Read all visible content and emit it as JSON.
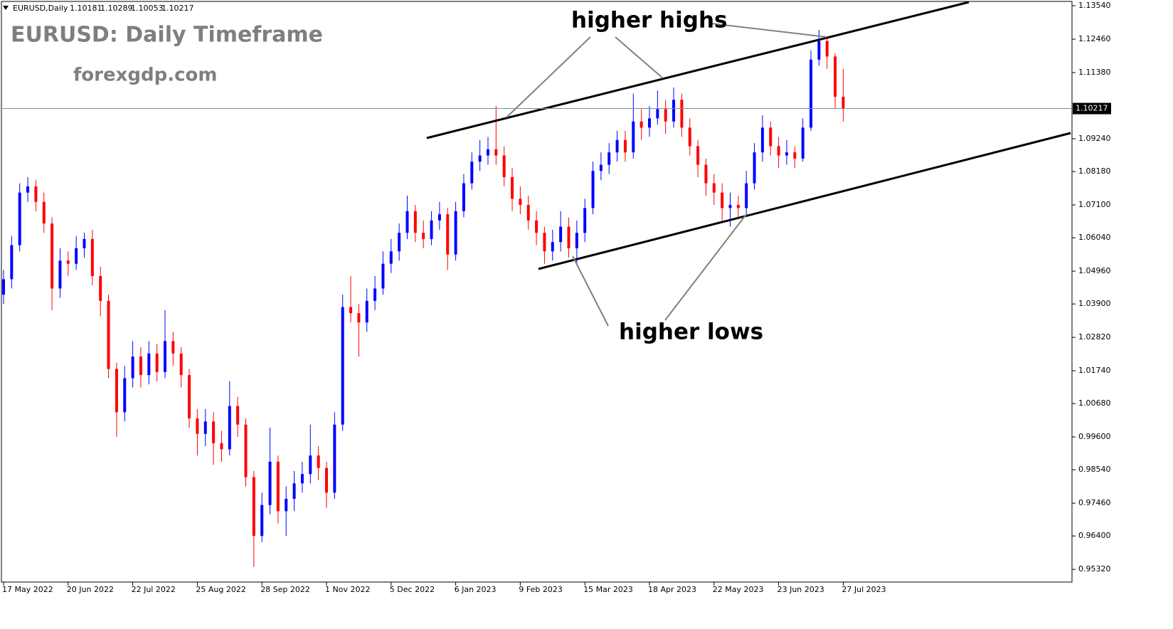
{
  "header": {
    "symbol": "EURUSD,Daily",
    "ohlc": [
      1.10181,
      1.10289,
      1.10053,
      1.10217
    ]
  },
  "chart_data": {
    "type": "candlestick",
    "title": "EURUSD: Daily Timeframe",
    "subtitle": "forexgdp.com",
    "annotations": [
      "higher highs",
      "higher lows"
    ],
    "up_color": "#0000ff",
    "down_color": "#ff0000",
    "last_price": 1.10217,
    "ylim": [
      0.9491,
      1.1368
    ],
    "yticks": [
      {
        "value": 1.1354,
        "label": "1.13540"
      },
      {
        "value": 1.1246,
        "label": "1.12460"
      },
      {
        "value": 1.1138,
        "label": "1.11380"
      },
      {
        "value": 1.0924,
        "label": "1.09240"
      },
      {
        "value": 1.0818,
        "label": "1.08180"
      },
      {
        "value": 1.071,
        "label": "1.07100"
      },
      {
        "value": 1.0604,
        "label": "1.06040"
      },
      {
        "value": 1.0496,
        "label": "1.04960"
      },
      {
        "value": 1.039,
        "label": "1.03900"
      },
      {
        "value": 1.0282,
        "label": "1.02820"
      },
      {
        "value": 1.0174,
        "label": "1.01740"
      },
      {
        "value": 1.0068,
        "label": "1.00680"
      },
      {
        "value": 0.996,
        "label": "0.99600"
      },
      {
        "value": 0.9854,
        "label": "0.98540"
      },
      {
        "value": 0.9746,
        "label": "0.97460"
      },
      {
        "value": 0.964,
        "label": "0.96400"
      },
      {
        "value": 0.9532,
        "label": "0.95320"
      }
    ],
    "categories": [
      "17 May 2022",
      null,
      null,
      null,
      null,
      null,
      null,
      null,
      "20 Jun 2022",
      null,
      null,
      null,
      null,
      null,
      null,
      null,
      "22 Jul 2022",
      null,
      null,
      null,
      null,
      null,
      null,
      null,
      "25 Aug 2022",
      null,
      null,
      null,
      null,
      null,
      null,
      null,
      "28 Sep 2022",
      null,
      null,
      null,
      null,
      null,
      null,
      null,
      "1 Nov 2022",
      null,
      null,
      null,
      null,
      null,
      null,
      null,
      "5 Dec 2022",
      null,
      null,
      null,
      null,
      null,
      null,
      null,
      "6 Jan 2023",
      null,
      null,
      null,
      null,
      null,
      null,
      null,
      "9 Feb 2023",
      null,
      null,
      null,
      null,
      null,
      null,
      null,
      "15 Mar 2023",
      null,
      null,
      null,
      null,
      null,
      null,
      null,
      "18 Apr 2023",
      null,
      null,
      null,
      null,
      null,
      null,
      null,
      "22 May 2023",
      null,
      null,
      null,
      null,
      null,
      null,
      null,
      "23 Jun 2023",
      null,
      null,
      null,
      null,
      null,
      null,
      null,
      "27 Jul 2023"
    ],
    "open": [
      1.042,
      1.047,
      1.058,
      1.075,
      1.077,
      1.072,
      1.065,
      1.044,
      1.053,
      1.052,
      1.057,
      1.06,
      1.048,
      1.04,
      1.018,
      1.004,
      1.015,
      1.022,
      1.016,
      1.023,
      1.017,
      1.027,
      1.023,
      1.016,
      1.002,
      0.997,
      1.001,
      0.994,
      0.992,
      1.006,
      1.0,
      0.983,
      0.964,
      0.974,
      0.988,
      0.972,
      0.976,
      0.981,
      0.984,
      0.99,
      0.986,
      0.978,
      1.0,
      1.038,
      1.036,
      1.033,
      1.04,
      1.044,
      1.052,
      1.056,
      1.062,
      1.069,
      1.062,
      1.06,
      1.066,
      1.068,
      1.055,
      1.069,
      1.078,
      1.085,
      1.087,
      1.089,
      1.087,
      1.08,
      1.073,
      1.071,
      1.066,
      1.062,
      1.056,
      1.059,
      1.064,
      1.057,
      1.062,
      1.07,
      1.082,
      1.084,
      1.088,
      1.092,
      1.088,
      1.098,
      1.096,
      1.099,
      1.102,
      1.098,
      1.105,
      1.096,
      1.09,
      1.084,
      1.078,
      1.075,
      1.07,
      1.071,
      1.07,
      1.078,
      1.088,
      1.096,
      1.09,
      1.087,
      1.088,
      1.086,
      1.096,
      1.118,
      1.124,
      1.119,
      1.106
    ],
    "high": [
      1.05,
      1.061,
      1.078,
      1.08,
      1.079,
      1.075,
      1.067,
      1.057,
      1.056,
      1.061,
      1.062,
      1.063,
      1.051,
      1.042,
      1.02,
      1.019,
      1.027,
      1.025,
      1.027,
      1.026,
      1.037,
      1.03,
      1.025,
      1.018,
      1.005,
      1.005,
      1.004,
      0.998,
      1.014,
      1.009,
      1.002,
      0.985,
      0.978,
      0.999,
      0.99,
      0.98,
      0.985,
      0.988,
      1.0,
      0.993,
      0.988,
      1.004,
      1.042,
      1.048,
      1.039,
      1.044,
      1.048,
      1.056,
      1.06,
      1.065,
      1.074,
      1.071,
      1.066,
      1.069,
      1.072,
      1.07,
      1.072,
      1.081,
      1.088,
      1.092,
      1.093,
      1.103,
      1.09,
      1.083,
      1.077,
      1.074,
      1.069,
      1.064,
      1.063,
      1.069,
      1.067,
      1.066,
      1.073,
      1.085,
      1.088,
      1.091,
      1.095,
      1.095,
      1.107,
      1.102,
      1.103,
      1.108,
      1.105,
      1.109,
      1.107,
      1.099,
      1.092,
      1.086,
      1.081,
      1.078,
      1.075,
      1.074,
      1.082,
      1.091,
      1.1,
      1.098,
      1.093,
      1.092,
      1.09,
      1.099,
      1.121,
      1.1276,
      1.125,
      1.12,
      1.115
    ],
    "low": [
      1.039,
      1.044,
      1.056,
      1.072,
      1.069,
      1.062,
      1.037,
      1.041,
      1.048,
      1.05,
      1.054,
      1.045,
      1.035,
      1.015,
      0.996,
      1.001,
      1.012,
      1.012,
      1.013,
      1.014,
      1.015,
      1.019,
      1.012,
      0.999,
      0.99,
      0.993,
      0.987,
      0.988,
      0.99,
      0.996,
      0.98,
      0.954,
      0.962,
      0.971,
      0.968,
      0.964,
      0.972,
      0.978,
      0.981,
      0.982,
      0.973,
      0.976,
      0.998,
      1.033,
      1.022,
      1.03,
      1.037,
      1.042,
      1.049,
      1.053,
      1.06,
      1.059,
      1.057,
      1.058,
      1.063,
      1.05,
      1.053,
      1.067,
      1.076,
      1.082,
      1.084,
      1.084,
      1.077,
      1.069,
      1.068,
      1.063,
      1.058,
      1.052,
      1.053,
      1.056,
      1.054,
      1.052,
      1.059,
      1.068,
      1.079,
      1.081,
      1.085,
      1.085,
      1.086,
      1.092,
      1.093,
      1.097,
      1.094,
      1.096,
      1.093,
      1.087,
      1.08,
      1.074,
      1.071,
      1.066,
      1.064,
      1.067,
      1.068,
      1.076,
      1.085,
      1.087,
      1.083,
      1.084,
      1.083,
      1.085,
      1.095,
      1.116,
      1.115,
      1.102,
      1.098
    ],
    "close": [
      1.047,
      1.058,
      1.075,
      1.077,
      1.072,
      1.065,
      1.044,
      1.053,
      1.052,
      1.057,
      1.06,
      1.048,
      1.04,
      1.018,
      1.004,
      1.015,
      1.022,
      1.016,
      1.023,
      1.017,
      1.027,
      1.023,
      1.016,
      1.002,
      0.997,
      1.001,
      0.994,
      0.992,
      1.006,
      1.0,
      0.983,
      0.964,
      0.974,
      0.988,
      0.972,
      0.976,
      0.981,
      0.984,
      0.99,
      0.986,
      0.978,
      1.0,
      1.038,
      1.036,
      1.033,
      1.04,
      1.044,
      1.052,
      1.056,
      1.062,
      1.069,
      1.062,
      1.06,
      1.066,
      1.068,
      1.055,
      1.069,
      1.078,
      1.085,
      1.087,
      1.089,
      1.087,
      1.08,
      1.073,
      1.071,
      1.066,
      1.062,
      1.056,
      1.059,
      1.064,
      1.057,
      1.062,
      1.07,
      1.082,
      1.084,
      1.088,
      1.092,
      1.088,
      1.098,
      1.096,
      1.099,
      1.102,
      1.098,
      1.105,
      1.096,
      1.09,
      1.084,
      1.078,
      1.075,
      1.07,
      1.071,
      1.07,
      1.078,
      1.088,
      1.096,
      1.09,
      1.087,
      1.088,
      1.086,
      1.096,
      1.118,
      1.124,
      1.119,
      1.106,
      1.1022
    ]
  }
}
